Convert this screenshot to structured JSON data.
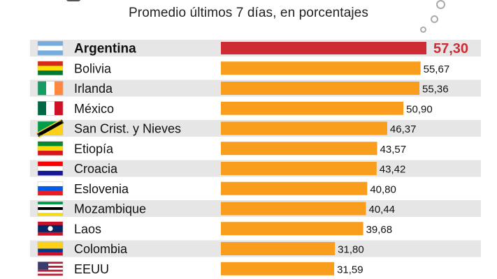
{
  "subtitle": "Promedio últimos 7 días, en porcentajes",
  "colors": {
    "bar": "#f99d1c",
    "highlight_bar": "#cf2b34",
    "row_band": "#e6e6e6"
  },
  "chart_data": {
    "type": "bar",
    "orientation": "horizontal",
    "title": "",
    "subtitle": "Promedio últimos 7 días, en porcentajes",
    "xlabel": "",
    "ylabel": "",
    "grid": false,
    "highlight": "Argentina",
    "categories": [
      "Argentina",
      "Bolivia",
      "Irlanda",
      "México",
      "San Crist. y Nieves",
      "Etiopía",
      "Croacia",
      "Eslovenia",
      "Mozambique",
      "Laos",
      "Colombia",
      "EEUU"
    ],
    "values": [
      57.3,
      55.67,
      55.36,
      50.9,
      46.37,
      43.57,
      43.42,
      40.8,
      40.44,
      39.68,
      31.8,
      31.59
    ],
    "labels": [
      "57,30",
      "55,67",
      "55,36",
      "50,90",
      "46,37",
      "43,57",
      "43,42",
      "40,80",
      "40,44",
      "39,68",
      "31,80",
      "31,59"
    ],
    "flags": [
      {
        "type": "h",
        "colors": [
          "#74acdf",
          "#ffffff",
          "#74acdf"
        ]
      },
      {
        "type": "h",
        "colors": [
          "#d52b1e",
          "#f9e300",
          "#007934"
        ]
      },
      {
        "type": "v",
        "colors": [
          "#169b62",
          "#ffffff",
          "#ff883e"
        ]
      },
      {
        "type": "v",
        "colors": [
          "#006847",
          "#ffffff",
          "#ce1126"
        ]
      },
      {
        "type": "diag",
        "colors": [
          "#009e49",
          "#ce1126",
          "#000000",
          "#fcd116"
        ]
      },
      {
        "type": "h",
        "colors": [
          "#078930",
          "#fcdd09",
          "#da121a"
        ]
      },
      {
        "type": "h",
        "colors": [
          "#ff0000",
          "#ffffff",
          "#171796"
        ]
      },
      {
        "type": "h",
        "colors": [
          "#ffffff",
          "#005ce6",
          "#ed1c24"
        ]
      },
      {
        "type": "h",
        "colors": [
          "#009a44",
          "#ffffff",
          "#000000",
          "#ffffff",
          "#fce100"
        ]
      },
      {
        "type": "laos",
        "colors": [
          "#ce1126",
          "#002868",
          "#ce1126"
        ]
      },
      {
        "type": "col",
        "colors": [
          "#fcd116",
          "#003893",
          "#ce1126"
        ]
      },
      {
        "type": "us",
        "colors": [
          "#b22234",
          "#ffffff",
          "#3c3b6e"
        ]
      }
    ]
  }
}
